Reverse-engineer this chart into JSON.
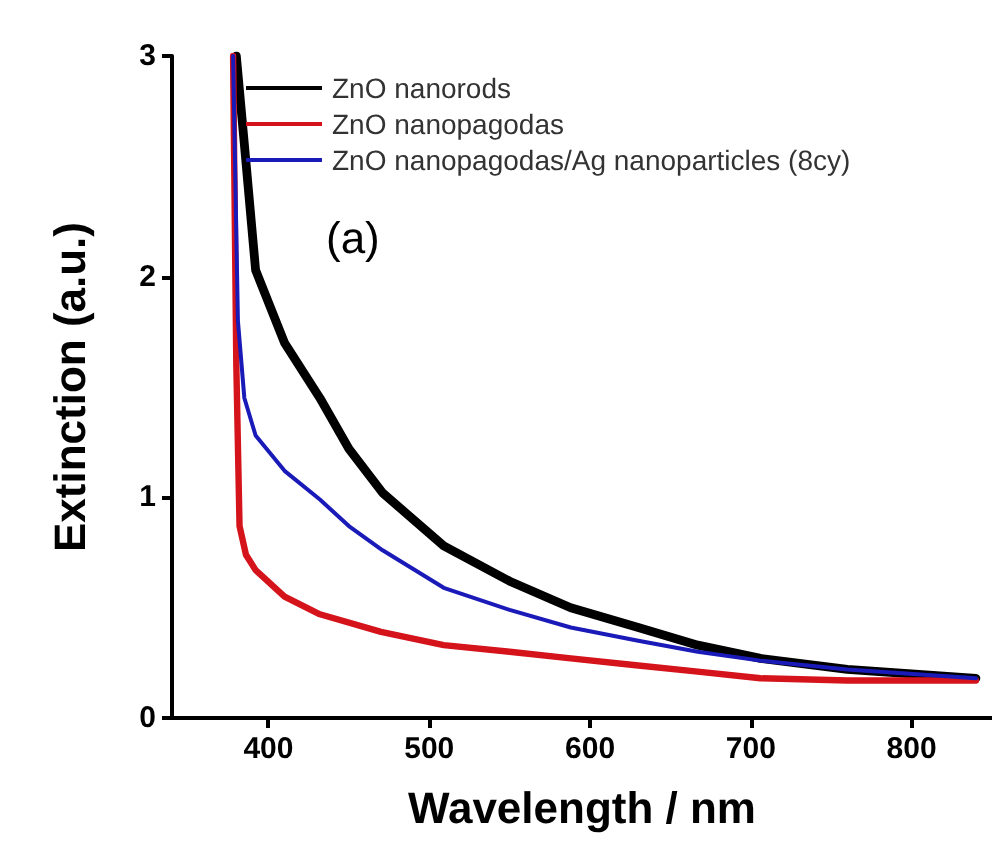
{
  "chart_data": {
    "type": "line",
    "xlabel": "Wavelength / nm",
    "ylabel": "Extinction (a.u.)",
    "xlim": [
      340,
      850
    ],
    "ylim": [
      0,
      3
    ],
    "xticks": [
      400,
      500,
      600,
      700,
      800
    ],
    "yticks": [
      0,
      1,
      2,
      3
    ],
    "grid": false,
    "legend": "top left",
    "marker": "none",
    "line_style": "solid",
    "annotations": [
      "(a)"
    ],
    "series": [
      {
        "name": "ZnO nanorods",
        "color": "#000000",
        "x": [
          380,
          385,
          392,
          410,
          432,
          450,
          471,
          509,
          550,
          588,
          630,
          667,
          706,
          760,
          840
        ],
        "values": [
          3.0,
          2.6,
          2.03,
          1.7,
          1.45,
          1.22,
          1.02,
          0.78,
          0.62,
          0.5,
          0.41,
          0.33,
          0.27,
          0.22,
          0.18
        ]
      },
      {
        "name": "ZnO nanopagodas",
        "color": "#d4131b",
        "x": [
          378,
          380,
          382,
          386,
          392,
          410,
          432,
          470,
          509,
          550,
          588,
          627,
          667,
          706,
          760,
          840
        ],
        "values": [
          3.0,
          1.6,
          0.87,
          0.74,
          0.67,
          0.55,
          0.47,
          0.39,
          0.33,
          0.3,
          0.27,
          0.24,
          0.21,
          0.18,
          0.17,
          0.17
        ]
      },
      {
        "name": "ZnO nanopagodas/Ag nanoparticles (8cy)",
        "color": "#1a1ab8",
        "x": [
          378,
          381,
          385,
          392,
          410,
          432,
          450,
          471,
          509,
          550,
          588,
          630,
          667,
          706,
          760,
          840
        ],
        "values": [
          3.0,
          1.8,
          1.45,
          1.28,
          1.12,
          0.99,
          0.87,
          0.76,
          0.59,
          0.49,
          0.41,
          0.35,
          0.3,
          0.26,
          0.22,
          0.18
        ]
      }
    ]
  }
}
